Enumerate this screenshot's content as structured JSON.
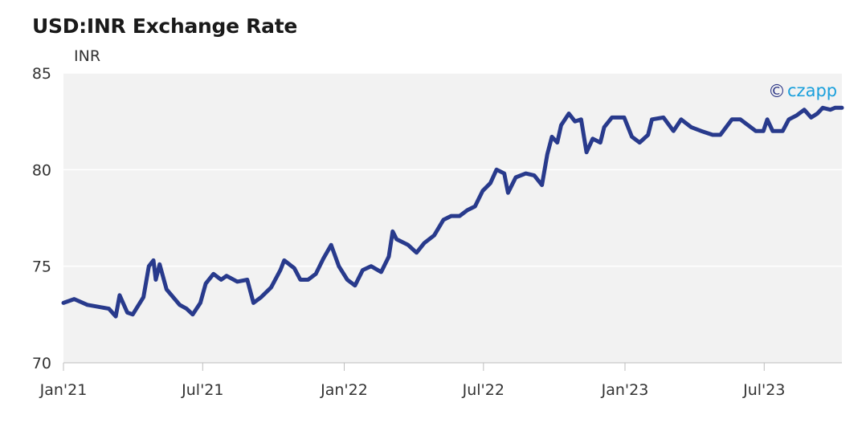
{
  "colors": {
    "line": "#283a8c",
    "plot_bg": "#f2f2f2",
    "grid": "#ffffff",
    "brand": "#1aa0dc",
    "brand_mark": "#2a3485"
  },
  "brand": {
    "mark": "©",
    "name": "czapp",
    "icon": "copyright-icon"
  },
  "chart_data": {
    "type": "line",
    "title": "USD:INR Exchange Rate",
    "ylabel": "INR",
    "xlabel": "",
    "ylim": [
      70,
      85
    ],
    "y_ticks": [
      70,
      75,
      80,
      85
    ],
    "x_range": [
      "2021-01-01",
      "2023-10-10"
    ],
    "x_ticks": [
      {
        "date": "2021-01-01",
        "label": "Jan'21"
      },
      {
        "date": "2021-07-01",
        "label": "Jul'21"
      },
      {
        "date": "2022-01-01",
        "label": "Jan'22"
      },
      {
        "date": "2022-07-01",
        "label": "Jul'22"
      },
      {
        "date": "2023-01-01",
        "label": "Jan'23"
      },
      {
        "date": "2023-07-01",
        "label": "Jul'23"
      }
    ],
    "grid": "horizontal",
    "series": [
      {
        "points": [
          [
            "2021-01-01",
            73.1
          ],
          [
            "2021-01-15",
            73.3
          ],
          [
            "2021-02-01",
            73.0
          ],
          [
            "2021-02-15",
            72.9
          ],
          [
            "2021-03-01",
            72.8
          ],
          [
            "2021-03-10",
            72.4
          ],
          [
            "2021-03-15",
            73.5
          ],
          [
            "2021-03-25",
            72.6
          ],
          [
            "2021-04-01",
            72.5
          ],
          [
            "2021-04-15",
            73.4
          ],
          [
            "2021-04-22",
            75.0
          ],
          [
            "2021-04-28",
            75.3
          ],
          [
            "2021-05-01",
            74.3
          ],
          [
            "2021-05-06",
            75.1
          ],
          [
            "2021-05-15",
            73.8
          ],
          [
            "2021-06-01",
            73.0
          ],
          [
            "2021-06-10",
            72.8
          ],
          [
            "2021-06-18",
            72.5
          ],
          [
            "2021-06-28",
            73.1
          ],
          [
            "2021-07-05",
            74.1
          ],
          [
            "2021-07-15",
            74.6
          ],
          [
            "2021-07-25",
            74.3
          ],
          [
            "2021-08-01",
            74.5
          ],
          [
            "2021-08-15",
            74.2
          ],
          [
            "2021-08-28",
            74.3
          ],
          [
            "2021-09-05",
            73.1
          ],
          [
            "2021-09-15",
            73.4
          ],
          [
            "2021-09-28",
            73.9
          ],
          [
            "2021-10-10",
            74.8
          ],
          [
            "2021-10-15",
            75.3
          ],
          [
            "2021-10-28",
            74.9
          ],
          [
            "2021-11-05",
            74.3
          ],
          [
            "2021-11-15",
            74.3
          ],
          [
            "2021-11-25",
            74.6
          ],
          [
            "2021-12-05",
            75.4
          ],
          [
            "2021-12-15",
            76.1
          ],
          [
            "2021-12-25",
            75.0
          ],
          [
            "2022-01-05",
            74.3
          ],
          [
            "2022-01-15",
            74.0
          ],
          [
            "2022-01-25",
            74.8
          ],
          [
            "2022-02-05",
            75.0
          ],
          [
            "2022-02-18",
            74.7
          ],
          [
            "2022-02-28",
            75.5
          ],
          [
            "2022-03-05",
            76.8
          ],
          [
            "2022-03-10",
            76.4
          ],
          [
            "2022-03-25",
            76.1
          ],
          [
            "2022-04-05",
            75.7
          ],
          [
            "2022-04-15",
            76.2
          ],
          [
            "2022-04-28",
            76.6
          ],
          [
            "2022-05-10",
            77.4
          ],
          [
            "2022-05-20",
            77.6
          ],
          [
            "2022-05-31",
            77.6
          ],
          [
            "2022-06-10",
            77.9
          ],
          [
            "2022-06-20",
            78.1
          ],
          [
            "2022-06-30",
            78.9
          ],
          [
            "2022-07-10",
            79.3
          ],
          [
            "2022-07-18",
            80.0
          ],
          [
            "2022-07-28",
            79.8
          ],
          [
            "2022-08-02",
            78.8
          ],
          [
            "2022-08-12",
            79.6
          ],
          [
            "2022-08-25",
            79.8
          ],
          [
            "2022-09-05",
            79.7
          ],
          [
            "2022-09-15",
            79.2
          ],
          [
            "2022-09-22",
            80.8
          ],
          [
            "2022-09-28",
            81.7
          ],
          [
            "2022-10-05",
            81.4
          ],
          [
            "2022-10-10",
            82.3
          ],
          [
            "2022-10-20",
            82.9
          ],
          [
            "2022-10-28",
            82.5
          ],
          [
            "2022-11-05",
            82.6
          ],
          [
            "2022-11-12",
            80.9
          ],
          [
            "2022-11-20",
            81.6
          ],
          [
            "2022-11-30",
            81.4
          ],
          [
            "2022-12-05",
            82.2
          ],
          [
            "2022-12-15",
            82.7
          ],
          [
            "2022-12-31",
            82.7
          ],
          [
            "2023-01-10",
            81.7
          ],
          [
            "2023-01-20",
            81.4
          ],
          [
            "2023-01-31",
            81.8
          ],
          [
            "2023-02-05",
            82.6
          ],
          [
            "2023-02-20",
            82.7
          ],
          [
            "2023-03-05",
            82.0
          ],
          [
            "2023-03-15",
            82.6
          ],
          [
            "2023-03-28",
            82.2
          ],
          [
            "2023-04-10",
            82.0
          ],
          [
            "2023-04-25",
            81.8
          ],
          [
            "2023-05-05",
            81.8
          ],
          [
            "2023-05-20",
            82.6
          ],
          [
            "2023-05-31",
            82.6
          ],
          [
            "2023-06-10",
            82.3
          ],
          [
            "2023-06-20",
            82.0
          ],
          [
            "2023-06-30",
            82.0
          ],
          [
            "2023-07-05",
            82.6
          ],
          [
            "2023-07-12",
            82.0
          ],
          [
            "2023-07-25",
            82.0
          ],
          [
            "2023-08-02",
            82.6
          ],
          [
            "2023-08-12",
            82.8
          ],
          [
            "2023-08-22",
            83.1
          ],
          [
            "2023-08-31",
            82.7
          ],
          [
            "2023-09-08",
            82.9
          ],
          [
            "2023-09-15",
            83.2
          ],
          [
            "2023-09-25",
            83.1
          ],
          [
            "2023-10-01",
            83.2
          ],
          [
            "2023-10-10",
            83.2
          ]
        ]
      }
    ]
  }
}
